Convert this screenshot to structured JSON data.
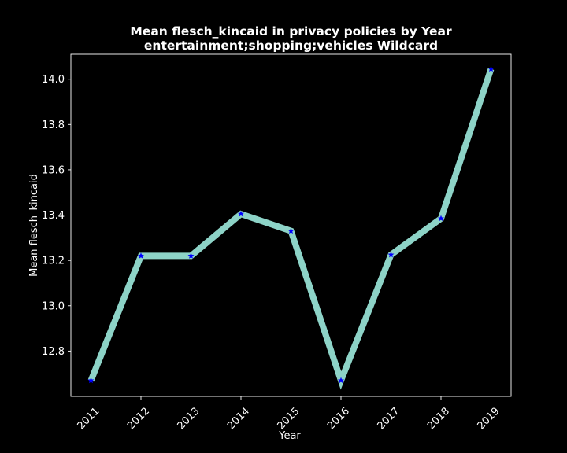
{
  "chart_data": {
    "type": "line",
    "title_lines": [
      "Mean flesch_kincaid in privacy policies by Year",
      "entertainment;shopping;vehicles Wildcard"
    ],
    "xlabel": "Year",
    "ylabel": "Mean flesch_kincaid",
    "x": [
      "2011",
      "2012",
      "2013",
      "2014",
      "2015",
      "2016",
      "2017",
      "2018",
      "2019"
    ],
    "series": [
      {
        "values": [
          12.67,
          13.22,
          13.22,
          13.405,
          13.33,
          12.67,
          13.225,
          13.385,
          14.045
        ],
        "line_color": "#8dd3c7",
        "marker": "star",
        "marker_color": "#0000ff"
      }
    ],
    "yticks": [
      "12.8",
      "13.0",
      "13.2",
      "13.4",
      "13.6",
      "13.8",
      "14.0"
    ],
    "ylim": [
      12.6,
      14.11
    ],
    "grid": false,
    "background": "#000000",
    "foreground": "#ffffff"
  }
}
